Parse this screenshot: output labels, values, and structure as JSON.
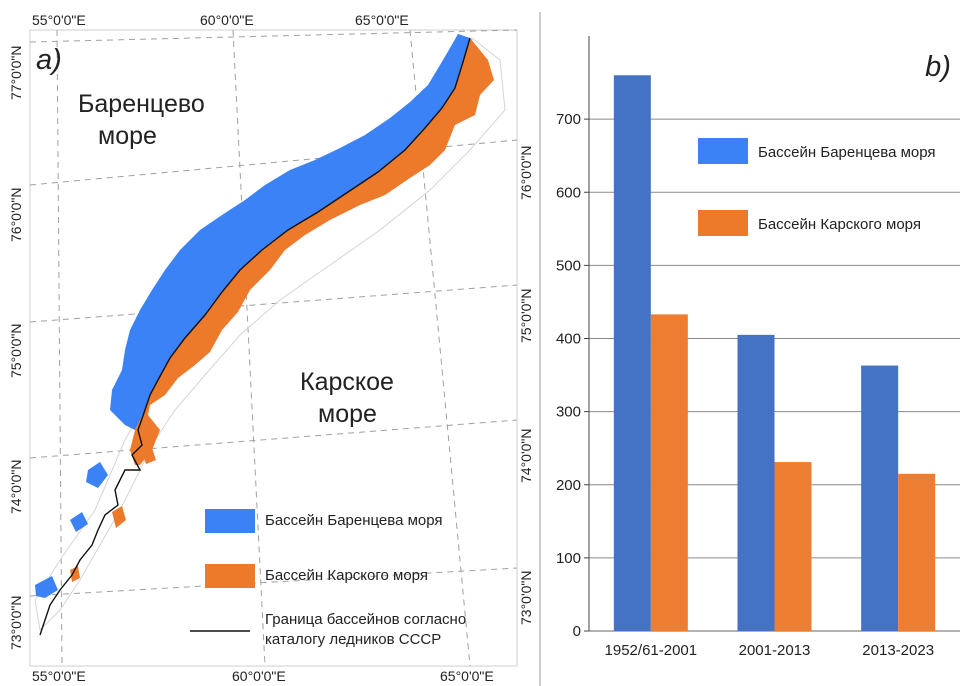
{
  "colors": {
    "barents": "#3b82f6",
    "kara": "#ed7a2b",
    "bar_blue": "#4472c4",
    "bar_orange": "#ed7d31",
    "boundary": "#111111",
    "graticule": "#9a9a9a"
  },
  "map": {
    "panel_label": "a)",
    "coords_top": [
      "55°0'0\"E",
      "60°0'0\"E",
      "65°0'0\"E"
    ],
    "coords_bottom": [
      "55°0'0\"E",
      "60°0'0\"E",
      "65°0'0\"E"
    ],
    "coords_left": [
      "77°0'0\"N",
      "76°0'0\"N",
      "75°0'0\"N",
      "74°0'0\"N",
      "73°0'0\"N"
    ],
    "coords_right": [
      "76°0'0\"N",
      "75°0'0\"N",
      "74°0'0\"N",
      "73°0'0\"N"
    ],
    "sea_barents": [
      "Баренцево",
      "море"
    ],
    "sea_kara": [
      "Карское",
      "море"
    ],
    "legend": {
      "barents": "Бассейн Баренцева моря",
      "kara": "Бассейн Карского моря",
      "boundary": [
        "Граница бассейнов согласно",
        "каталогу ледников СССР"
      ]
    }
  },
  "chart_data": {
    "type": "bar",
    "panel_label": "b)",
    "categories": [
      "1952/61-2001",
      "2001-2013",
      "2013-2023"
    ],
    "series": [
      {
        "name": "Бассейн Баренцева моря",
        "values": [
          760,
          405,
          363
        ]
      },
      {
        "name": "Бассейн Карского моря",
        "values": [
          433,
          231,
          215
        ]
      }
    ],
    "ylim": [
      0,
      800
    ],
    "yticks": [
      0,
      100,
      200,
      300,
      400,
      500,
      600,
      700
    ],
    "grid": true,
    "legend_position": "upper-right"
  }
}
